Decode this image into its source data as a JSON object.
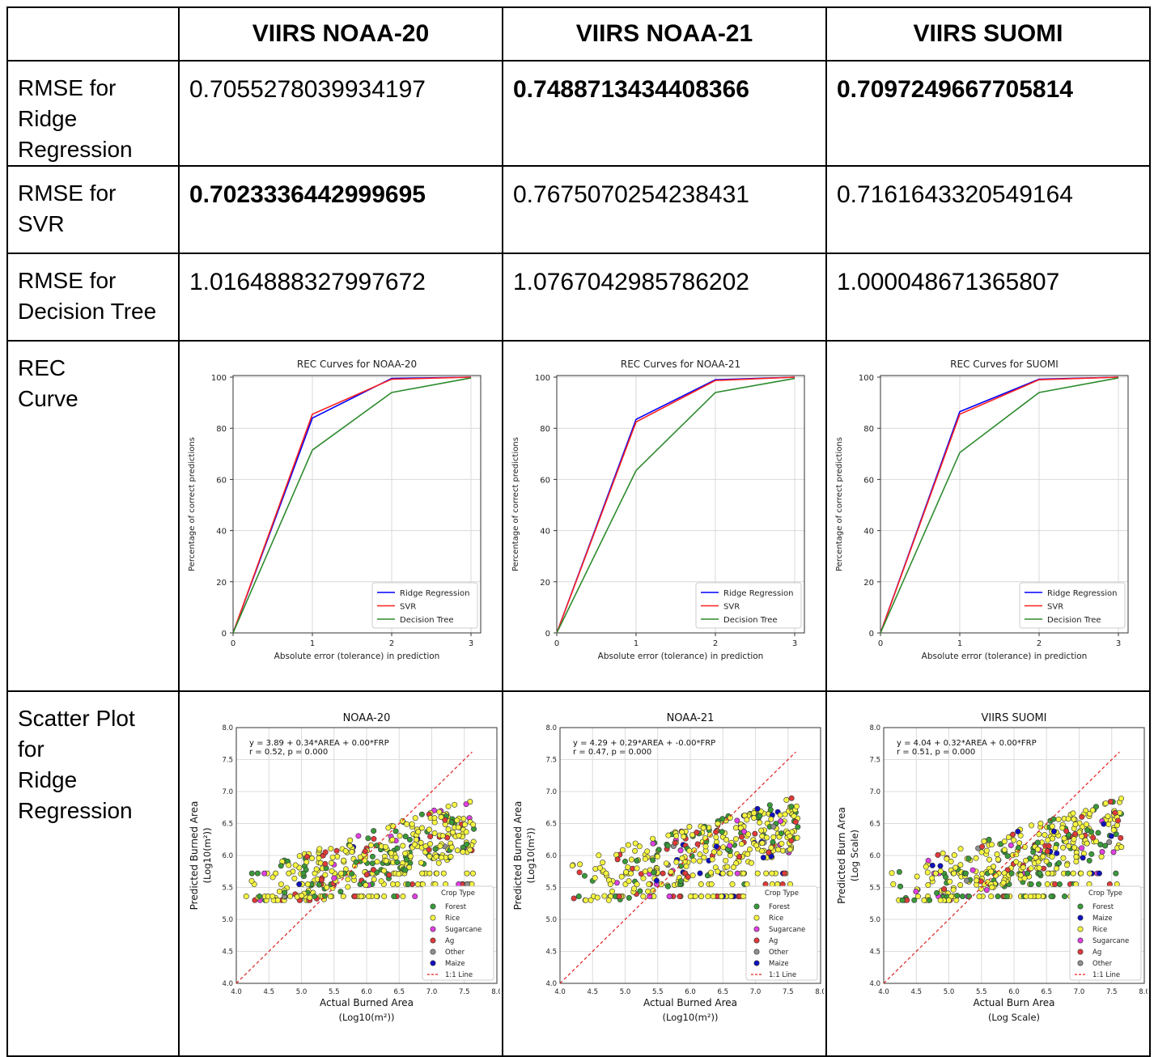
{
  "table": {
    "columns": [
      "",
      "VIIRS NOAA-20",
      "VIIRS NOAA-21",
      "VIIRS SUOMI"
    ],
    "rows": [
      {
        "label": "RMSE for Ridge Regression",
        "label_lines": [
          "RMSE for",
          "Ridge",
          "Regression"
        ],
        "values": [
          "0.7055278039934197",
          "0.7488713434408366",
          "0.7097249667705814"
        ],
        "bold": [
          false,
          true,
          true
        ]
      },
      {
        "label": "RMSE for SVR",
        "label_lines": [
          "RMSE for",
          "SVR"
        ],
        "values": [
          "0.7023336442999695",
          "0.7675070254238431",
          "0.7161643320549164"
        ],
        "bold": [
          true,
          false,
          false
        ]
      },
      {
        "label": "RMSE for Decision Tree",
        "label_lines": [
          "RMSE for",
          "Decision Tree"
        ],
        "values": [
          "1.0164888327997672",
          "1.0767042985786202",
          "1.000048671365807"
        ],
        "bold": [
          false,
          false,
          false
        ]
      },
      {
        "label": "REC Curve",
        "label_lines": [
          "REC",
          "Curve"
        ]
      },
      {
        "label": "Scatter Plot for Ridge Regression",
        "label_lines": [
          "Scatter Plot",
          "for",
          "Ridge",
          "Regression"
        ]
      }
    ]
  },
  "colors": {
    "ridge": "#0000ff",
    "svr": "#ff2020",
    "tree": "#2e8b2e",
    "forest": "#3a9a3a",
    "rice": "#f5f542",
    "sugarcane": "#e040e0",
    "ag": "#e03a3a",
    "other": "#909090",
    "maize": "#1010c0"
  },
  "chart_data": [
    {
      "type": "line",
      "title": "REC Curves for NOAA-20",
      "xlabel": "Absolute error (tolerance) in prediction",
      "ylabel": "Percentage of correct predictions",
      "x": [
        0,
        1,
        2,
        3
      ],
      "xlim": [
        0,
        3
      ],
      "ylim": [
        0,
        100
      ],
      "xticks": [
        "0",
        "1",
        "2",
        "3"
      ],
      "yticks": [
        "0",
        "20",
        "40",
        "60",
        "80",
        "100"
      ],
      "grid": true,
      "legend": "bottom-right",
      "series": [
        {
          "name": "Ridge Regression",
          "values": [
            0,
            84,
            99.5,
            100
          ]
        },
        {
          "name": "SVR",
          "values": [
            0,
            85.5,
            99.2,
            100
          ]
        },
        {
          "name": "Decision Tree",
          "values": [
            0,
            71.5,
            94,
            99.7
          ]
        }
      ]
    },
    {
      "type": "line",
      "title": "REC Curves for NOAA-21",
      "xlabel": "Absolute error (tolerance) in prediction",
      "ylabel": "Percentage of correct predictions",
      "x": [
        0,
        1,
        2,
        3
      ],
      "xlim": [
        0,
        3
      ],
      "ylim": [
        0,
        100
      ],
      "xticks": [
        "0",
        "1",
        "2",
        "3"
      ],
      "yticks": [
        "0",
        "20",
        "40",
        "60",
        "80",
        "100"
      ],
      "grid": true,
      "legend": "bottom-right",
      "series": [
        {
          "name": "Ridge Regression",
          "values": [
            0,
            83.5,
            99,
            100
          ]
        },
        {
          "name": "SVR",
          "values": [
            0,
            82.5,
            98.7,
            100
          ]
        },
        {
          "name": "Decision Tree",
          "values": [
            0,
            63.5,
            94,
            99.5
          ]
        }
      ]
    },
    {
      "type": "line",
      "title": "REC Curves for SUOMI",
      "xlabel": "Absolute error (tolerance) in prediction",
      "ylabel": "Percentage of correct predictions",
      "x": [
        0,
        1,
        2,
        3
      ],
      "xlim": [
        0,
        3
      ],
      "ylim": [
        0,
        100
      ],
      "xticks": [
        "0",
        "1",
        "2",
        "3"
      ],
      "yticks": [
        "0",
        "20",
        "40",
        "60",
        "80",
        "100"
      ],
      "grid": true,
      "legend": "bottom-right",
      "series": [
        {
          "name": "Ridge Regression",
          "values": [
            0,
            86.5,
            99.2,
            100
          ]
        },
        {
          "name": "SVR",
          "values": [
            0,
            85.5,
            99,
            100
          ]
        },
        {
          "name": "Decision Tree",
          "values": [
            0,
            70.5,
            94,
            99.7
          ]
        }
      ]
    },
    {
      "type": "scatter",
      "title": "NOAA-20",
      "annotation": [
        "y = 3.89 + 0.34*AREA + 0.00*FRP",
        "r = 0.52, p = 0.000"
      ],
      "xlabel": [
        "Actual Burned Area",
        "(Log10(m²))"
      ],
      "ylabel": [
        "Predicted Burned Area",
        "(Log10(m²))"
      ],
      "xlim": [
        4.0,
        8.0
      ],
      "ylim": [
        4.0,
        8.0
      ],
      "xticks": [
        "4.0",
        "4.5",
        "5.0",
        "5.5",
        "6.0",
        "6.5",
        "7.0",
        "7.5",
        "8.0"
      ],
      "yticks": [
        "4.0",
        "4.5",
        "5.0",
        "5.5",
        "6.0",
        "6.5",
        "7.0",
        "7.5",
        "8.0"
      ],
      "intercept": 3.89,
      "slope": 0.34,
      "r": 0.52,
      "seed": 7,
      "legend_title": "Crop Type",
      "legend": [
        "Forest",
        "Rice",
        "Sugarcane",
        "Ag",
        "Other",
        "Maize",
        "1:1 Line"
      ],
      "categories": [
        "Forest",
        "Rice",
        "Sugarcane",
        "Ag",
        "Other",
        "Maize"
      ],
      "reference_line": "1:1 Line",
      "grid": true
    },
    {
      "type": "scatter",
      "title": "NOAA-21",
      "annotation": [
        "y = 4.29 + 0.29*AREA + -0.00*FRP",
        "r = 0.47, p = 0.000"
      ],
      "xlabel": [
        "Actual Burned Area",
        "(Log10(m²))"
      ],
      "ylabel": [
        "Predicted Burned Area",
        "(Log10(m²))"
      ],
      "xlim": [
        4.0,
        8.0
      ],
      "ylim": [
        4.0,
        8.0
      ],
      "xticks": [
        "4.0",
        "4.5",
        "5.0",
        "5.5",
        "6.0",
        "6.5",
        "7.0",
        "7.5",
        "8.0"
      ],
      "yticks": [
        "4.0",
        "4.5",
        "5.0",
        "5.5",
        "6.0",
        "6.5",
        "7.0",
        "7.5",
        "8.0"
      ],
      "intercept": 4.29,
      "slope": 0.29,
      "r": 0.47,
      "seed": 13,
      "legend_title": "Crop Type",
      "legend": [
        "Forest",
        "Rice",
        "Sugarcane",
        "Ag",
        "Other",
        "Maize",
        "1:1 Line"
      ],
      "categories": [
        "Forest",
        "Rice",
        "Sugarcane",
        "Ag",
        "Other",
        "Maize"
      ],
      "reference_line": "1:1 Line",
      "grid": true
    },
    {
      "type": "scatter",
      "title": "VIIRS SUOMI",
      "annotation": [
        "y = 4.04 + 0.32*AREA + 0.00*FRP",
        "r = 0.51, p = 0.000"
      ],
      "xlabel": [
        "Actual Burn Area",
        "(Log Scale)"
      ],
      "ylabel": [
        "Predicted Burn Area",
        "(Log Scale)"
      ],
      "xlim": [
        4.0,
        8.0
      ],
      "ylim": [
        4.0,
        8.0
      ],
      "xticks": [
        "4.0",
        "4.5",
        "5.0",
        "5.5",
        "6.0",
        "6.5",
        "7.0",
        "7.5",
        "8.0"
      ],
      "yticks": [
        "4.0",
        "4.5",
        "5.0",
        "5.5",
        "6.0",
        "6.5",
        "7.0",
        "7.5",
        "8.0"
      ],
      "intercept": 4.04,
      "slope": 0.32,
      "r": 0.51,
      "seed": 21,
      "legend_title": "Crop Type",
      "legend": [
        "Forest",
        "Maize",
        "Rice",
        "Sugarcane",
        "Ag",
        "Other",
        "1:1 Line"
      ],
      "categories": [
        "Forest",
        "Maize",
        "Rice",
        "Sugarcane",
        "Ag",
        "Other"
      ],
      "reference_line": "1:1 Line",
      "grid": true
    }
  ]
}
